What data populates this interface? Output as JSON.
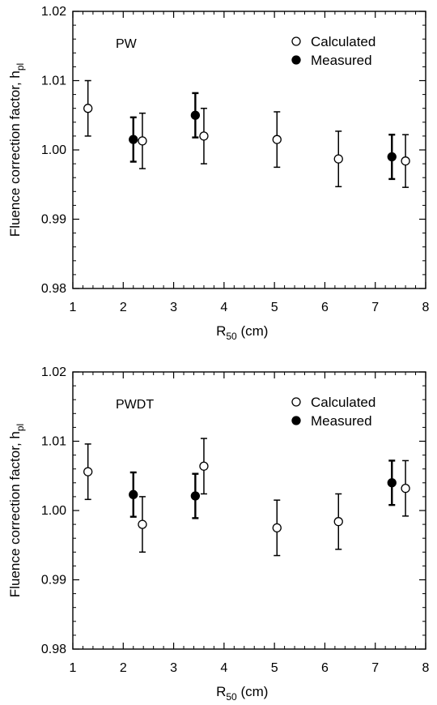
{
  "chart_data": [
    {
      "type": "scatter",
      "panel_label": "PW",
      "xlabel_main": "R",
      "xlabel_sub": "50",
      "xlabel_unit": " (cm)",
      "ylabel_main": "Fluence correction factor, h",
      "ylabel_sub": "pl",
      "xlim": [
        1,
        8
      ],
      "ylim": [
        0.98,
        1.02
      ],
      "x_ticks": [
        "1",
        "2",
        "3",
        "4",
        "5",
        "6",
        "7",
        "8"
      ],
      "y_ticks": [
        "0.98",
        "0.99",
        "1.00",
        "1.01",
        "1.02"
      ],
      "legend_position": "top-right",
      "series": [
        {
          "name": "Calculated",
          "marker": "open-circle",
          "points": [
            {
              "x": 1.3,
              "y": 1.006,
              "err": 0.004
            },
            {
              "x": 2.38,
              "y": 1.0013,
              "err": 0.004
            },
            {
              "x": 3.6,
              "y": 1.002,
              "err": 0.004
            },
            {
              "x": 5.05,
              "y": 1.0015,
              "err": 0.004
            },
            {
              "x": 6.27,
              "y": 0.9987,
              "err": 0.004
            },
            {
              "x": 7.6,
              "y": 0.9984,
              "err": 0.0038
            }
          ]
        },
        {
          "name": "Measured",
          "marker": "filled-circle",
          "points": [
            {
              "x": 2.2,
              "y": 1.0015,
              "err": 0.0032
            },
            {
              "x": 3.43,
              "y": 1.005,
              "err": 0.0032
            },
            {
              "x": 7.33,
              "y": 0.999,
              "err": 0.0032
            }
          ]
        }
      ]
    },
    {
      "type": "scatter",
      "panel_label": "PWDT",
      "xlabel_main": "R",
      "xlabel_sub": "50",
      "xlabel_unit": " (cm)",
      "ylabel_main": "Fluence correction factor, h",
      "ylabel_sub": "pl",
      "xlim": [
        1,
        8
      ],
      "ylim": [
        0.98,
        1.02
      ],
      "x_ticks": [
        "1",
        "2",
        "3",
        "4",
        "5",
        "6",
        "7",
        "8"
      ],
      "y_ticks": [
        "0.98",
        "0.99",
        "1.00",
        "1.01",
        "1.02"
      ],
      "legend_position": "top-right",
      "series": [
        {
          "name": "Calculated",
          "marker": "open-circle",
          "points": [
            {
              "x": 1.3,
              "y": 1.0056,
              "err": 0.004
            },
            {
              "x": 2.38,
              "y": 0.998,
              "err": 0.004
            },
            {
              "x": 3.6,
              "y": 1.0064,
              "err": 0.004
            },
            {
              "x": 5.05,
              "y": 0.9975,
              "err": 0.004
            },
            {
              "x": 6.27,
              "y": 0.9984,
              "err": 0.004
            },
            {
              "x": 7.6,
              "y": 1.0032,
              "err": 0.004
            }
          ]
        },
        {
          "name": "Measured",
          "marker": "filled-circle",
          "points": [
            {
              "x": 2.2,
              "y": 1.0023,
              "err": 0.0032
            },
            {
              "x": 3.43,
              "y": 1.0021,
              "err": 0.0032
            },
            {
              "x": 7.33,
              "y": 1.004,
              "err": 0.0032
            }
          ]
        }
      ]
    }
  ]
}
